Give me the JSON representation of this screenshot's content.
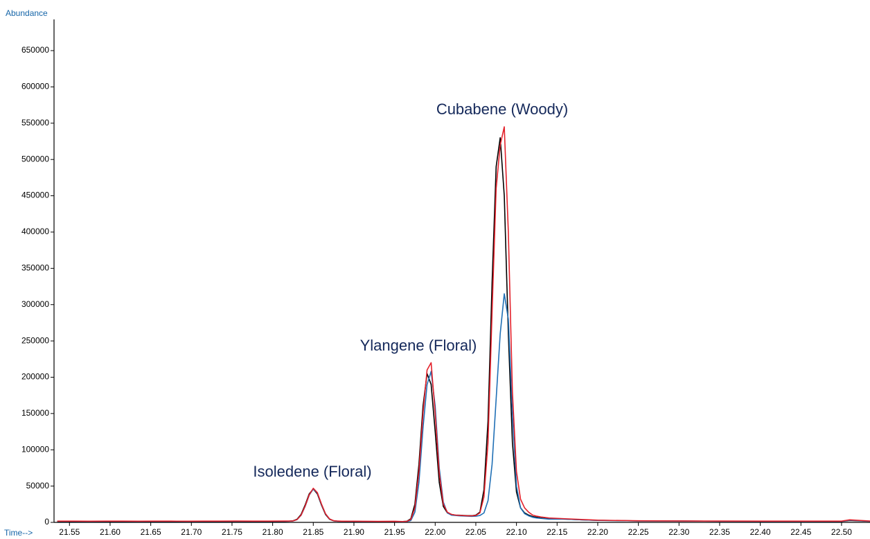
{
  "chart_data": {
    "type": "line",
    "y_label": "Abundance",
    "x_label": "Time-->",
    "annotations": [
      "Isoledene (Floral)",
      "Ylangene (Floral)",
      "Cubabene (Woody)"
    ],
    "xlim": [
      21.531,
      22.535
    ],
    "ylim": [
      0,
      693000
    ],
    "xticks": [
      21.55,
      {
        "value": 21.6,
        "label": "21.60"
      },
      21.65,
      {
        "value": 21.7,
        "label": "21.70"
      },
      21.75,
      {
        "value": 21.8,
        "label": "21.80"
      },
      21.85,
      {
        "value": 21.9,
        "label": "21.90"
      },
      21.95,
      {
        "value": 22.0,
        "label": "22.00"
      },
      22.05,
      {
        "value": 22.1,
        "label": "22.10"
      },
      22.15,
      {
        "value": 22.2,
        "label": "22.20"
      },
      22.25,
      {
        "value": 22.3,
        "label": "22.30"
      },
      22.35,
      {
        "value": 22.4,
        "label": "22.40"
      },
      22.45,
      {
        "value": 22.5,
        "label": "22.50"
      }
    ],
    "yticks": [
      0,
      50000,
      100000,
      150000,
      200000,
      250000,
      300000,
      350000,
      400000,
      450000,
      500000,
      550000,
      600000,
      650000
    ],
    "x": [
      21.535,
      21.555,
      21.575,
      21.595,
      21.615,
      21.635,
      21.655,
      21.675,
      21.695,
      21.715,
      21.735,
      21.755,
      21.775,
      21.795,
      21.815,
      21.82,
      21.825,
      21.83,
      21.835,
      21.84,
      21.845,
      21.85,
      21.855,
      21.86,
      21.865,
      21.87,
      21.875,
      21.88,
      21.885,
      21.89,
      21.91,
      21.93,
      21.95,
      21.96,
      21.965,
      21.97,
      21.975,
      21.98,
      21.985,
      21.99,
      21.995,
      22.0,
      22.005,
      22.01,
      22.015,
      22.02,
      22.025,
      22.03,
      22.035,
      22.04,
      22.045,
      22.05,
      22.055,
      22.06,
      22.065,
      22.07,
      22.075,
      22.08,
      22.085,
      22.09,
      22.095,
      22.1,
      22.105,
      22.11,
      22.115,
      22.12,
      22.125,
      22.13,
      22.14,
      22.16,
      22.18,
      22.2,
      22.25,
      22.3,
      22.35,
      22.4,
      22.45,
      22.5,
      22.51,
      22.535
    ],
    "series": [
      {
        "color": "#000000",
        "values": [
          1300,
          1300,
          1200,
          1300,
          1300,
          1200,
          1300,
          1300,
          1200,
          1300,
          1300,
          1400,
          1300,
          1300,
          1400,
          1600,
          2100,
          4300,
          11000,
          24000,
          39300,
          46000,
          39300,
          24000,
          11000,
          4300,
          2100,
          1600,
          1500,
          1400,
          1200,
          1000,
          1100,
          1200,
          1500,
          5000,
          25000,
          80000,
          160000,
          205000,
          190000,
          125000,
          55000,
          22000,
          13000,
          11000,
          10000,
          9800,
          9500,
          9300,
          9200,
          10000,
          14000,
          45000,
          140000,
          330000,
          490000,
          530000,
          450000,
          260000,
          110000,
          42000,
          20000,
          13000,
          10000,
          8000,
          7000,
          6000,
          5000,
          4500,
          3500,
          2800,
          2000,
          1800,
          1600,
          1500,
          1500,
          1400,
          2500,
          1500
        ]
      },
      {
        "color": "#1f6fb5",
        "values": [
          1500,
          1500,
          1400,
          1500,
          1500,
          1400,
          1500,
          1500,
          1400,
          1500,
          1500,
          1600,
          1500,
          1500,
          1600,
          1600,
          1900,
          3700,
          9800,
          22000,
          37500,
          46000,
          40500,
          25000,
          11800,
          4700,
          2200,
          1600,
          1500,
          1500,
          1300,
          1200,
          1300,
          1000,
          1100,
          2500,
          14000,
          55000,
          130000,
          190000,
          208000,
          160000,
          75000,
          28000,
          13000,
          10000,
          9500,
          9000,
          8800,
          8500,
          8300,
          8500,
          9500,
          13000,
          30000,
          80000,
          170000,
          260000,
          315000,
          280000,
          150000,
          50000,
          20000,
          12000,
          9000,
          7000,
          6000,
          5500,
          4500,
          4500,
          3500,
          2700,
          2000,
          1800,
          1600,
          1500,
          1500,
          1500,
          3000,
          1600
        ]
      },
      {
        "color": "#e3202a",
        "values": [
          1700,
          1700,
          1600,
          1700,
          1700,
          1600,
          1700,
          1700,
          1600,
          1700,
          1700,
          1800,
          1700,
          1700,
          1800,
          1800,
          2000,
          3800,
          10000,
          22500,
          38000,
          47000,
          41000,
          25500,
          12000,
          4800,
          2300,
          1800,
          1600,
          1600,
          1500,
          1400,
          1500,
          1200,
          1400,
          4000,
          20000,
          70000,
          150000,
          210000,
          220000,
          150000,
          68000,
          25000,
          14000,
          11000,
          10000,
          9700,
          9300,
          9000,
          9000,
          9500,
          13000,
          35000,
          110000,
          290000,
          460000,
          520000,
          545000,
          400000,
          180000,
          70000,
          32000,
          20000,
          14000,
          10000,
          8500,
          7500,
          6000,
          5000,
          4000,
          3000,
          2200,
          2000,
          1800,
          1700,
          1700,
          1700,
          3500,
          1800
        ]
      }
    ]
  }
}
